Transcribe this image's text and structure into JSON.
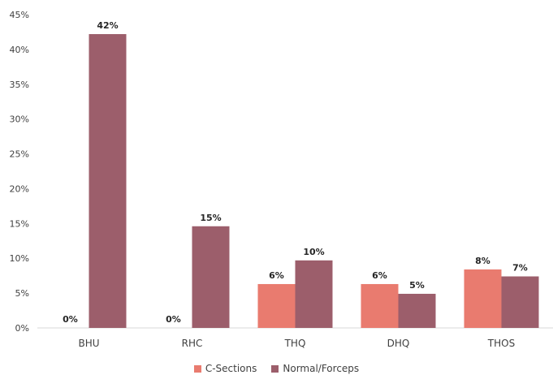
{
  "chart_data": {
    "type": "bar",
    "categories": [
      "BHU",
      "RHC",
      "THQ",
      "DHQ",
      "THOS"
    ],
    "series": [
      {
        "name": "C-Sections",
        "color": "#E97B6F",
        "values": [
          0,
          0,
          6.3,
          6.3,
          8.4
        ],
        "labels": [
          "0%",
          "0%",
          "6%",
          "6%",
          "8%"
        ]
      },
      {
        "name": "Normal/Forceps",
        "color": "#9C5E6B",
        "values": [
          42.2,
          14.6,
          9.7,
          4.9,
          7.4
        ],
        "labels": [
          "42%",
          "15%",
          "10%",
          "5%",
          "7%"
        ]
      }
    ],
    "ylim": [
      0,
      45
    ],
    "yticks": [
      "0%",
      "5%",
      "10%",
      "15%",
      "20%",
      "25%",
      "30%",
      "35%",
      "40%",
      "45%"
    ],
    "title": "",
    "xlabel": "",
    "ylabel": "",
    "grid": false,
    "legend_position": "bottom"
  }
}
